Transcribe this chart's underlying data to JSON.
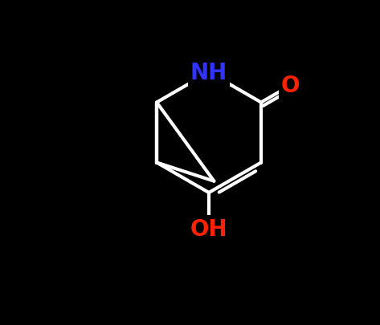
{
  "background_color": "#000000",
  "bond_color": "#ffffff",
  "bond_width": 3.0,
  "N_color": "#3333ff",
  "O_color": "#ff2200",
  "NH_label": "NH",
  "O_label": "O",
  "OH_label": "OH",
  "font_size_atoms": 20,
  "figsize": [
    4.73,
    4.06
  ],
  "dpi": 100,
  "xlim": [
    0,
    9.46
  ],
  "ylim": [
    0,
    8.12
  ]
}
